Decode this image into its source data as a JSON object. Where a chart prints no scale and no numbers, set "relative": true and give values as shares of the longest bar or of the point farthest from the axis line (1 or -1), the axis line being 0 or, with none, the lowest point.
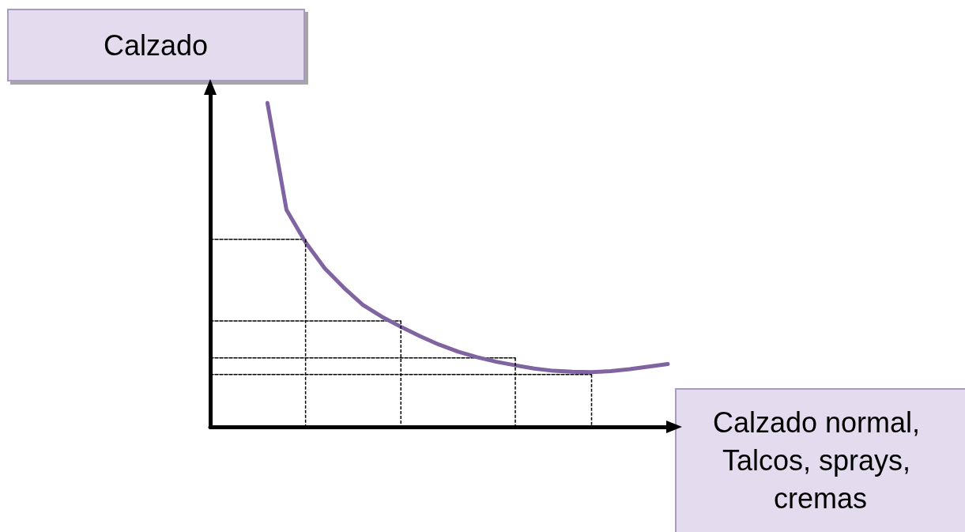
{
  "chart_data": {
    "type": "line",
    "relative": true,
    "xlabel": "Calzado normal, Talcos, sprays, cremas",
    "ylabel": "Calzado",
    "grid": false,
    "marker": "none",
    "categories": [
      null,
      null,
      null,
      null,
      null,
      null,
      null,
      null,
      null,
      null,
      null,
      null,
      null,
      null,
      null,
      null,
      null,
      null,
      null,
      null,
      null,
      null,
      null,
      null,
      null
    ],
    "series": [
      {
        "color": "#8064a2",
        "line_style": "solid",
        "values": [
          null,
          null,
          null,
          1.0,
          0.67,
          0.57,
          0.49,
          0.43,
          0.377,
          0.34,
          0.309,
          0.28,
          0.254,
          0.232,
          0.215,
          0.201,
          0.19,
          0.18,
          0.173,
          0.17,
          0.169,
          0.172,
          0.178,
          0.186,
          0.194
        ]
      },
      {
        "color": "#000000",
        "line_style": "dashed",
        "values": [
          0.579,
          0.579,
          0.579,
          0.579,
          0.579,
          0.579,
          null,
          null,
          null,
          null,
          null,
          null,
          null,
          null,
          null,
          null,
          null,
          null,
          null,
          null,
          null,
          null,
          null,
          null,
          null
        ]
      },
      {
        "color": "#000000",
        "line_style": "dashed",
        "values": [
          0.327,
          0.327,
          0.327,
          0.327,
          0.327,
          0.327,
          0.327,
          0.327,
          0.327,
          0.327,
          0.327,
          null,
          null,
          null,
          null,
          null,
          null,
          null,
          null,
          null,
          null,
          null,
          null,
          null,
          null
        ]
      },
      {
        "color": "#000000",
        "line_style": "dashed",
        "values": [
          0.213,
          0.213,
          0.213,
          0.213,
          0.213,
          0.213,
          0.213,
          0.213,
          0.213,
          0.213,
          0.213,
          0.213,
          0.213,
          0.213,
          0.213,
          0.213,
          0.213,
          null,
          null,
          null,
          null,
          null,
          null,
          null,
          null
        ]
      },
      {
        "color": "#000000",
        "line_style": "dashed",
        "values": [
          0.162,
          0.162,
          0.162,
          0.162,
          0.162,
          0.162,
          0.162,
          0.162,
          0.162,
          0.162,
          0.162,
          0.162,
          0.162,
          0.162,
          0.162,
          0.162,
          0.162,
          0.162,
          0.162,
          0.162,
          0.162,
          null,
          null,
          null,
          null
        ]
      }
    ]
  }
}
